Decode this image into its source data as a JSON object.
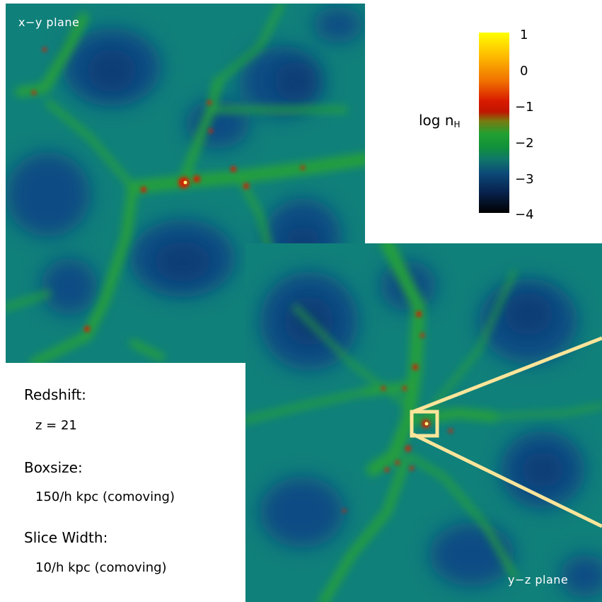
{
  "panels": {
    "xy": {
      "label": "x−y plane"
    },
    "yz": {
      "label": "y−z plane"
    }
  },
  "colorbar": {
    "title": "log n",
    "title_sub": "H",
    "ticks": [
      "1",
      "0",
      "−1",
      "−2",
      "−3",
      "−4"
    ],
    "colors": {
      "max": "#ffff00",
      "orange": "#f07000",
      "red": "#c01600",
      "green": "#22a030",
      "teal": "#107868",
      "blue": "#0c4a78",
      "min": "#000000"
    }
  },
  "info": {
    "redshift_label": "Redshift:",
    "redshift_value": "z = 21",
    "boxsize_label": "Boxsize:",
    "boxsize_value": "150/h kpc (comoving)",
    "slice_label": "Slice Width:",
    "slice_value": "10/h kpc (comoving)"
  },
  "zoom_indicator": {
    "color": "#fbe59a"
  }
}
